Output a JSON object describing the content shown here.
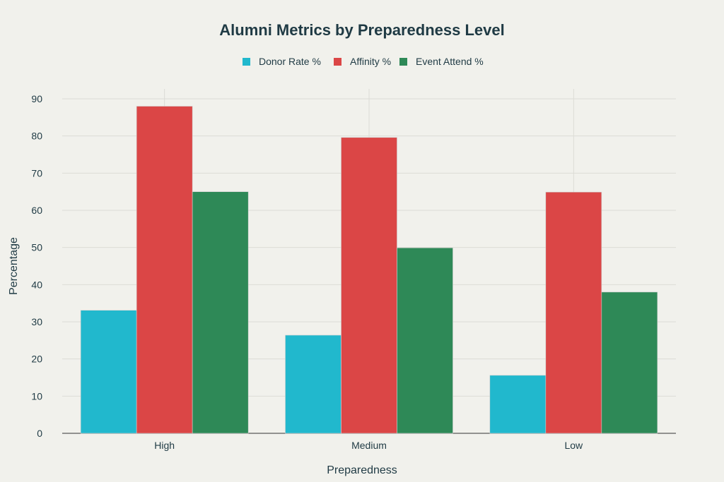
{
  "chart_data": {
    "type": "bar",
    "title": "Alumni Metrics by Preparedness Level",
    "xlabel": "Preparedness",
    "ylabel": "Percentage",
    "categories": [
      "High",
      "Medium",
      "Low"
    ],
    "ylim": [
      0,
      90
    ],
    "yticks": [
      0,
      10,
      20,
      30,
      40,
      50,
      60,
      70,
      80,
      90
    ],
    "grid": true,
    "legend_position": "top-center",
    "series": [
      {
        "name": "Donor Rate %",
        "color": "#21b8cd",
        "values": [
          33.1,
          26.4,
          15.6
        ]
      },
      {
        "name": "Affinity %",
        "color": "#db4646",
        "values": [
          88.0,
          79.6,
          64.9
        ]
      },
      {
        "name": "Event Attend %",
        "color": "#2e8957",
        "values": [
          65.0,
          49.9,
          38.0
        ]
      }
    ]
  }
}
